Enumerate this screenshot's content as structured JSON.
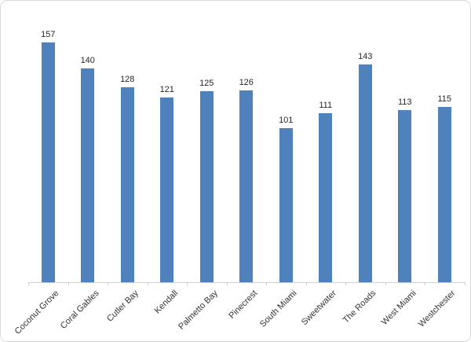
{
  "chart_data": {
    "type": "bar",
    "title": "",
    "xlabel": "",
    "ylabel": "",
    "categories": [
      "Coconut Grove",
      "Coral Gables",
      "Cutler Bay",
      "Kendall",
      "Palmetto Bay",
      "Pinecrest",
      "South Miami",
      "Sweetwater",
      "The Roads",
      "West Miami",
      "Westchester"
    ],
    "values": [
      157,
      140,
      128,
      121,
      125,
      126,
      101,
      111,
      143,
      113,
      115
    ],
    "data_labels_shown": true,
    "y_axis_shown": false,
    "gridlines": false,
    "legend": "none",
    "bar_color": "#4f81bd",
    "axis_color": "#cfcfcf",
    "value_label_color": "#262626",
    "category_label_color": "#333333"
  },
  "frame": {
    "border_color": "#d9d9d9",
    "background_color": "#ffffff"
  }
}
